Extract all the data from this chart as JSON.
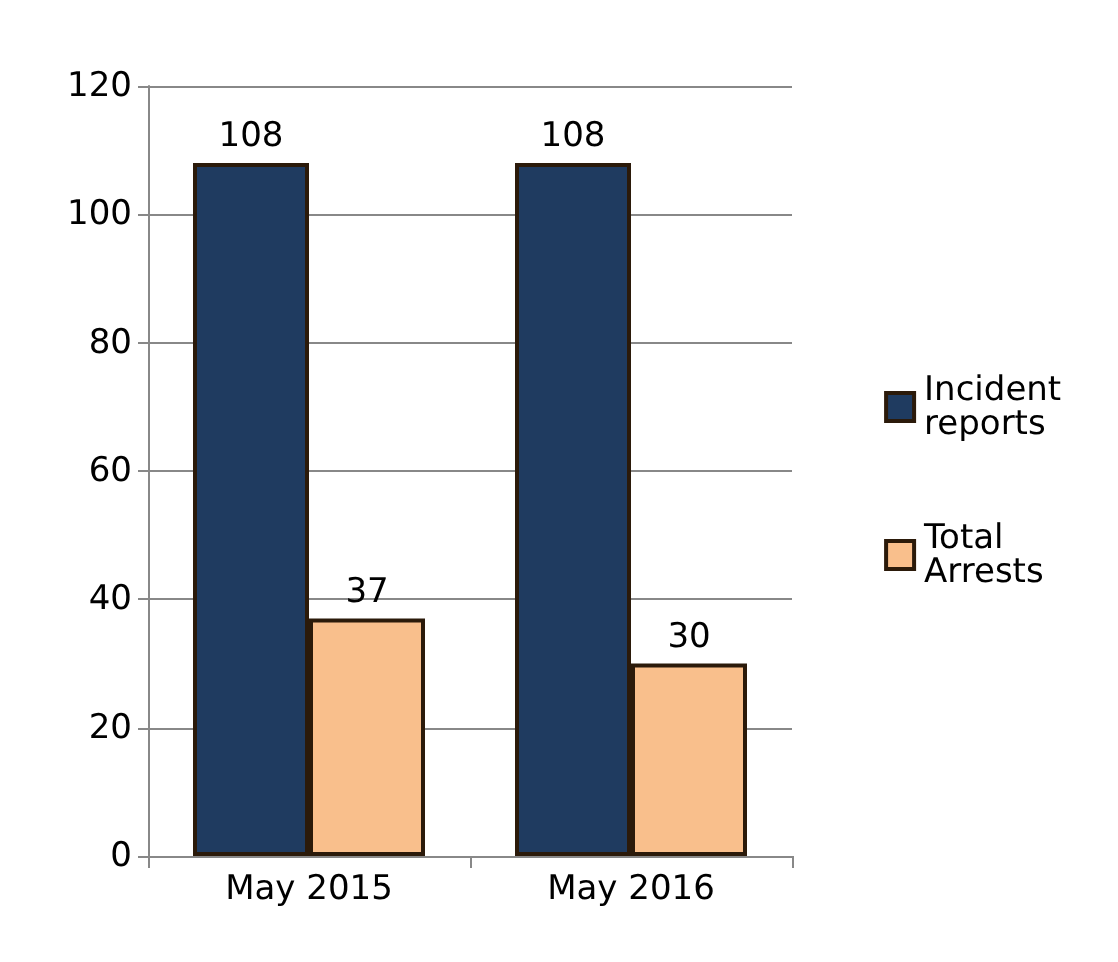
{
  "chart_data": {
    "type": "bar",
    "categories": [
      "May 2015",
      "May 2016"
    ],
    "series": [
      {
        "name": "Incident reports",
        "color": "#1f3b60",
        "values": [
          108,
          108
        ]
      },
      {
        "name": "Total Arrests",
        "color": "#f9bf8c",
        "values": [
          37,
          30
        ]
      }
    ],
    "ylim": [
      0,
      120
    ],
    "yticks": [
      0,
      20,
      40,
      60,
      80,
      100,
      120
    ],
    "grid": "y",
    "legend": "right",
    "data_labels": true
  }
}
